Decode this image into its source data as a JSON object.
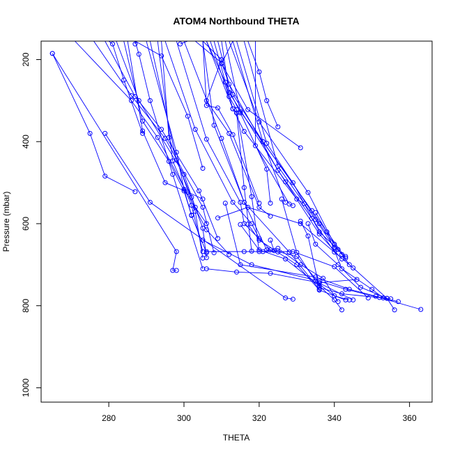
{
  "chart_data": {
    "type": "line",
    "title": "ATOM4 Northbound THETA",
    "xlabel": "THETA",
    "ylabel": "Pressure (mbar)",
    "xlim": [
      262,
      366
    ],
    "ylim": [
      1035,
      155
    ],
    "y_reversed": true,
    "xticks": [
      280,
      300,
      320,
      340,
      360
    ],
    "yticks": [
      200,
      400,
      600,
      800,
      1000
    ],
    "grid": false,
    "legend": "none",
    "colors": {
      "series": "#0000ff",
      "axis": "#000000"
    },
    "series": [
      {
        "x": [
          265,
          275,
          279,
          287
        ],
        "y": [
          185,
          380,
          484,
          522
        ]
      },
      {
        "x": [
          265,
          298,
          297,
          298
        ],
        "y": [
          185,
          668,
          714,
          714
        ]
      },
      {
        "x": [
          279,
          291,
          327,
          329
        ],
        "y": [
          380,
          548,
          781,
          784
        ]
      },
      {
        "x": [
          271,
          286,
          293,
          306,
          312
        ],
        "y": [
          155,
          300,
          390,
          615,
          675
        ]
      },
      {
        "x": [
          276,
          286,
          295,
          305,
          308
        ],
        "y": [
          155,
          288,
          392,
          560,
          671
        ]
      },
      {
        "x": [
          279,
          287,
          294,
          304,
          309
        ],
        "y": [
          155,
          290,
          370,
          520,
          636
        ]
      },
      {
        "x": [
          282,
          288,
          300,
          303,
          306
        ],
        "y": [
          155,
          300,
          480,
          560,
          600
        ]
      },
      {
        "x": [
          284,
          289,
          296,
          300,
          302
        ],
        "y": [
          155,
          350,
          448,
          520,
          579
        ]
      },
      {
        "x": [
          285,
          289,
          295,
          301,
          305
        ],
        "y": [
          155,
          374,
          500,
          523,
          540
        ]
      },
      {
        "x": [
          287,
          294,
          301,
          305
        ],
        "y": [
          155,
          191,
          338,
          465
        ]
      },
      {
        "x": [
          290,
          298,
          300,
          302,
          306
        ],
        "y": [
          155,
          426,
          516,
          580,
          671
        ]
      },
      {
        "x": [
          291,
          298,
          302,
          305,
          306
        ],
        "y": [
          155,
          445,
          536,
          611,
          683
        ]
      },
      {
        "x": [
          293,
          297,
          302,
          305
        ],
        "y": [
          155,
          447,
          555,
          668
        ]
      },
      {
        "x": [
          294,
          296,
          303,
          305
        ],
        "y": [
          155,
          390,
          570,
          684
        ]
      },
      {
        "x": [
          305,
          306,
          309,
          313,
          320
        ],
        "y": [
          155,
          312,
          318,
          383,
          550
        ]
      },
      {
        "x": [
          306,
          311,
          315,
          322,
          323
        ],
        "y": [
          155,
          255,
          330,
          467,
          550
        ]
      },
      {
        "x": [
          306,
          313,
          314,
          316,
          318
        ],
        "y": [
          155,
          320,
          330,
          512,
          667
        ]
      },
      {
        "x": [
          307,
          312,
          314,
          318,
          320
        ],
        "y": [
          155,
          290,
          322,
          534,
          668
        ]
      },
      {
        "x": [
          308,
          313,
          316,
          330,
          332
        ],
        "y": [
          155,
          320,
          375,
          540,
          551
        ]
      },
      {
        "x": [
          309,
          312,
          325,
          334,
          340
        ],
        "y": [
          155,
          260,
          470,
          587,
          669
        ]
      },
      {
        "x": [
          310,
          312,
          327,
          336,
          342
        ],
        "y": [
          155,
          280,
          498,
          625,
          686
        ]
      },
      {
        "x": [
          311,
          315,
          329,
          336,
          341
        ],
        "y": [
          155,
          327,
          500,
          620,
          663
        ]
      },
      {
        "x": [
          312,
          320,
          333,
          340,
          342
        ],
        "y": [
          155,
          352,
          524,
          650,
          675
        ]
      },
      {
        "x": [
          313,
          321,
          334,
          343
        ],
        "y": [
          155,
          400,
          568,
          684
        ]
      },
      {
        "x": [
          314,
          322,
          336,
          344
        ],
        "y": [
          155,
          404,
          600,
          700
        ]
      },
      {
        "x": [
          316,
          325,
          335,
          340,
          343
        ],
        "y": [
          155,
          460,
          590,
          658,
          680
        ]
      },
      {
        "x": [
          303,
          310,
          313,
          321,
          327
        ],
        "y": [
          155,
          208,
          285,
          400,
          548
        ]
      },
      {
        "x": [
          295,
          303,
          313,
          318,
          320
        ],
        "y": [
          155,
          370,
          548,
          600,
          636
        ]
      },
      {
        "x": [
          298,
          306,
          315,
          316,
          323
        ],
        "y": [
          155,
          394,
          548,
          600,
          664
        ]
      },
      {
        "x": [
          300,
          310,
          316,
          322,
          325
        ],
        "y": [
          155,
          392,
          548,
          664,
          669
        ]
      },
      {
        "x": [
          305,
          308,
          316,
          328,
          336
        ],
        "y": [
          155,
          360,
          548,
          669,
          760
        ]
      },
      {
        "x": [
          319,
          319,
          328,
          329
        ],
        "y": [
          155,
          410,
          552,
          556
        ]
      },
      {
        "x": [
          287,
          288,
          291,
          297,
          305
        ],
        "y": [
          155,
          187,
          300,
          480,
          710
        ]
      },
      {
        "x": [
          280,
          281,
          284,
          289
        ],
        "y": [
          155,
          162,
          250,
          380
        ]
      },
      {
        "x": [
          287,
          287
        ],
        "y": [
          155,
          162
        ]
      },
      {
        "x": [
          301,
          299
        ],
        "y": [
          155,
          162
        ]
      },
      {
        "x": [
          305,
          310,
          306,
          312,
          320,
          323
        ],
        "y": [
          155,
          200,
          300,
          380,
          560,
          582
        ]
      },
      {
        "x": [
          317,
          320,
          322,
          325
        ],
        "y": [
          155,
          230,
          300,
          364
        ]
      },
      {
        "x": [
          313,
          310,
          317,
          331
        ],
        "y": [
          155,
          210,
          322,
          415
        ]
      },
      {
        "x": [
          306,
          316,
          329,
          340,
          349
        ],
        "y": [
          668,
          668,
          668,
          705,
          781
        ]
      },
      {
        "x": [
          311,
          315,
          335,
          344,
          351,
          357
        ],
        "y": [
          550,
          700,
          730,
          760,
          777,
          790
        ]
      },
      {
        "x": [
          309,
          317,
          331,
          345,
          354,
          356
        ],
        "y": [
          586,
          560,
          600,
          708,
          782,
          810
        ]
      },
      {
        "x": [
          305,
          318,
          336,
          343,
          352,
          363
        ],
        "y": [
          640,
          700,
          740,
          760,
          780,
          809
        ]
      },
      {
        "x": [
          306,
          314,
          323,
          336,
          346
        ],
        "y": [
          710,
          718,
          721,
          744,
          736
        ]
      },
      {
        "x": [
          315,
          320,
          327,
          336,
          340,
          342
        ],
        "y": [
          602,
          664,
          686,
          752,
          786,
          810
        ]
      },
      {
        "x": [
          317,
          320,
          330,
          336,
          343
        ],
        "y": [
          601,
          640,
          700,
          762,
          786
        ]
      },
      {
        "x": [
          323,
          324,
          330,
          336,
          345
        ],
        "y": [
          640,
          666,
          680,
          745,
          786
        ]
      },
      {
        "x": [
          321,
          325,
          331,
          337,
          341
        ],
        "y": [
          668,
          660,
          700,
          733,
          790
        ]
      },
      {
        "x": [
          326,
          330,
          335,
          340,
          344
        ],
        "y": [
          540,
          670,
          740,
          776,
          786
        ]
      },
      {
        "x": [
          331,
          333,
          336,
          342,
          355
        ],
        "y": [
          594,
          630,
          756,
          771,
          783
        ]
      },
      {
        "x": [
          333,
          335,
          341,
          347,
          354
        ],
        "y": [
          600,
          650,
          700,
          755,
          782
        ]
      },
      {
        "x": [
          335,
          338,
          342,
          350,
          353
        ],
        "y": [
          573,
          620,
          710,
          760,
          781
        ]
      }
    ]
  }
}
